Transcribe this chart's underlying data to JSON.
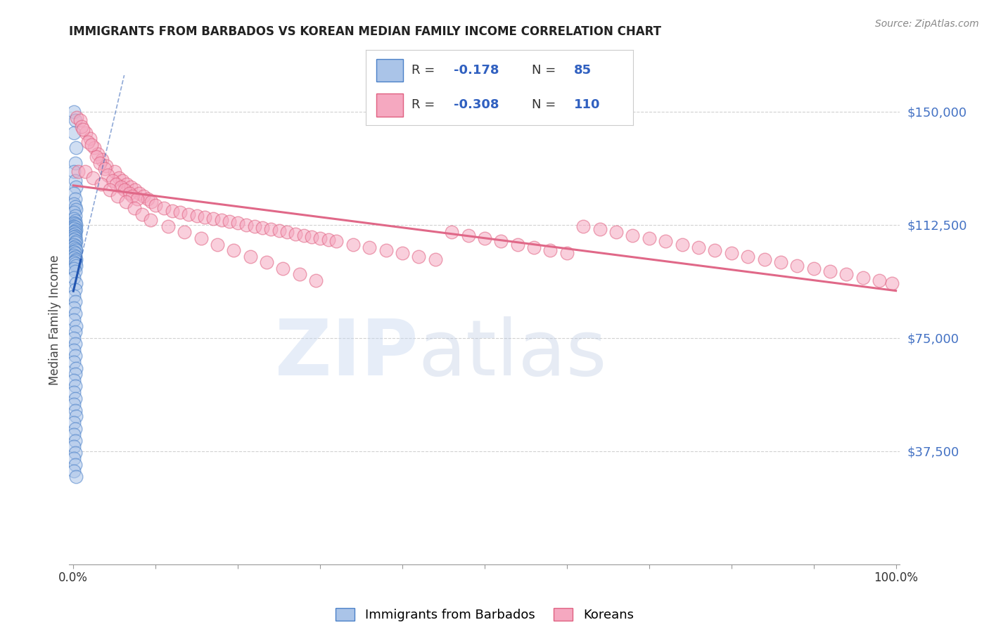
{
  "title": "IMMIGRANTS FROM BARBADOS VS KOREAN MEDIAN FAMILY INCOME CORRELATION CHART",
  "source": "Source: ZipAtlas.com",
  "ylabel": "Median Family Income",
  "ytick_labels": [
    "$37,500",
    "$75,000",
    "$112,500",
    "$150,000"
  ],
  "ytick_values": [
    37500,
    75000,
    112500,
    150000
  ],
  "ylim": [
    0,
    162000
  ],
  "xlim": [
    -0.005,
    1.005
  ],
  "blue_color": "#aac4e8",
  "pink_color": "#f5a8c0",
  "blue_edge_color": "#4a80c8",
  "pink_edge_color": "#e06080",
  "blue_line_color": "#2255b0",
  "pink_line_color": "#e06888",
  "legend_label_blue": "Immigrants from Barbados",
  "legend_label_pink": "Koreans",
  "blue_scatter_x": [
    0.001,
    0.002,
    0.001,
    0.003,
    0.002,
    0.001,
    0.002,
    0.003,
    0.001,
    0.002,
    0.001,
    0.002,
    0.003,
    0.001,
    0.002,
    0.001,
    0.002,
    0.001,
    0.002,
    0.003,
    0.001,
    0.002,
    0.001,
    0.003,
    0.002,
    0.001,
    0.002,
    0.001,
    0.002,
    0.001,
    0.002,
    0.001,
    0.003,
    0.002,
    0.001,
    0.002,
    0.001,
    0.002,
    0.003,
    0.001,
    0.002,
    0.001,
    0.002,
    0.001,
    0.003,
    0.002,
    0.001,
    0.002,
    0.003,
    0.001,
    0.002,
    0.001,
    0.003,
    0.002,
    0.001,
    0.002,
    0.001,
    0.002,
    0.001,
    0.003,
    0.002,
    0.001,
    0.002,
    0.001,
    0.002,
    0.001,
    0.003,
    0.002,
    0.001,
    0.002,
    0.001,
    0.002,
    0.001,
    0.002,
    0.003,
    0.001,
    0.002,
    0.001,
    0.002,
    0.001,
    0.002,
    0.001,
    0.002,
    0.001,
    0.003
  ],
  "blue_scatter_y": [
    150000,
    147000,
    143000,
    138000,
    133000,
    130000,
    127000,
    125000,
    123000,
    121000,
    119500,
    118500,
    117500,
    116500,
    115500,
    114500,
    113800,
    113200,
    112800,
    112400,
    112000,
    111600,
    111200,
    110800,
    110400,
    110000,
    109600,
    109200,
    108800,
    108400,
    108000,
    107500,
    107000,
    106500,
    106000,
    105500,
    105000,
    104500,
    104000,
    103500,
    103000,
    102500,
    102000,
    101500,
    101000,
    100500,
    100000,
    99500,
    99000,
    98000,
    97000,
    95000,
    93000,
    91000,
    89000,
    87000,
    85000,
    83000,
    81000,
    79000,
    77000,
    75000,
    73000,
    71000,
    69000,
    67000,
    65000,
    63000,
    61000,
    59000,
    57000,
    55000,
    53000,
    51000,
    49000,
    47000,
    45000,
    43000,
    41000,
    39000,
    37000,
    35000,
    33000,
    31000,
    29000
  ],
  "pink_scatter_x": [
    0.004,
    0.008,
    0.015,
    0.02,
    0.025,
    0.03,
    0.035,
    0.04,
    0.05,
    0.055,
    0.06,
    0.065,
    0.07,
    0.075,
    0.08,
    0.085,
    0.09,
    0.01,
    0.012,
    0.018,
    0.022,
    0.028,
    0.032,
    0.038,
    0.042,
    0.048,
    0.052,
    0.058,
    0.062,
    0.068,
    0.072,
    0.078,
    0.095,
    0.1,
    0.11,
    0.12,
    0.13,
    0.14,
    0.15,
    0.16,
    0.17,
    0.18,
    0.19,
    0.2,
    0.21,
    0.22,
    0.23,
    0.24,
    0.25,
    0.26,
    0.27,
    0.28,
    0.29,
    0.3,
    0.31,
    0.32,
    0.34,
    0.36,
    0.38,
    0.4,
    0.42,
    0.44,
    0.46,
    0.48,
    0.5,
    0.52,
    0.54,
    0.56,
    0.58,
    0.6,
    0.62,
    0.64,
    0.66,
    0.68,
    0.7,
    0.72,
    0.74,
    0.76,
    0.78,
    0.8,
    0.82,
    0.84,
    0.86,
    0.88,
    0.9,
    0.92,
    0.94,
    0.96,
    0.98,
    0.995,
    0.006,
    0.014,
    0.024,
    0.034,
    0.044,
    0.054,
    0.064,
    0.074,
    0.084,
    0.094,
    0.115,
    0.135,
    0.155,
    0.175,
    0.195,
    0.215,
    0.235,
    0.255,
    0.275,
    0.295
  ],
  "pink_scatter_y": [
    148000,
    147000,
    143000,
    141000,
    138000,
    136000,
    134000,
    132000,
    130000,
    128000,
    127000,
    126000,
    125000,
    124000,
    123000,
    122000,
    121000,
    145000,
    144000,
    140000,
    139000,
    135000,
    133000,
    131000,
    129000,
    127000,
    126000,
    125000,
    124000,
    123000,
    122000,
    121000,
    120000,
    119000,
    118000,
    117000,
    116500,
    116000,
    115500,
    115000,
    114500,
    114000,
    113500,
    113000,
    112500,
    112000,
    111500,
    111000,
    110500,
    110000,
    109500,
    109000,
    108500,
    108000,
    107500,
    107000,
    106000,
    105000,
    104000,
    103000,
    102000,
    101000,
    110000,
    109000,
    108000,
    107000,
    106000,
    105000,
    104000,
    103000,
    112000,
    111000,
    110000,
    109000,
    108000,
    107000,
    106000,
    105000,
    104000,
    103000,
    102000,
    101000,
    100000,
    99000,
    98000,
    97000,
    96000,
    95000,
    94000,
    93000,
    130000,
    130000,
    128000,
    126000,
    124000,
    122000,
    120000,
    118000,
    116000,
    114000,
    112000,
    110000,
    108000,
    106000,
    104000,
    102000,
    100000,
    98000,
    96000,
    94000
  ]
}
